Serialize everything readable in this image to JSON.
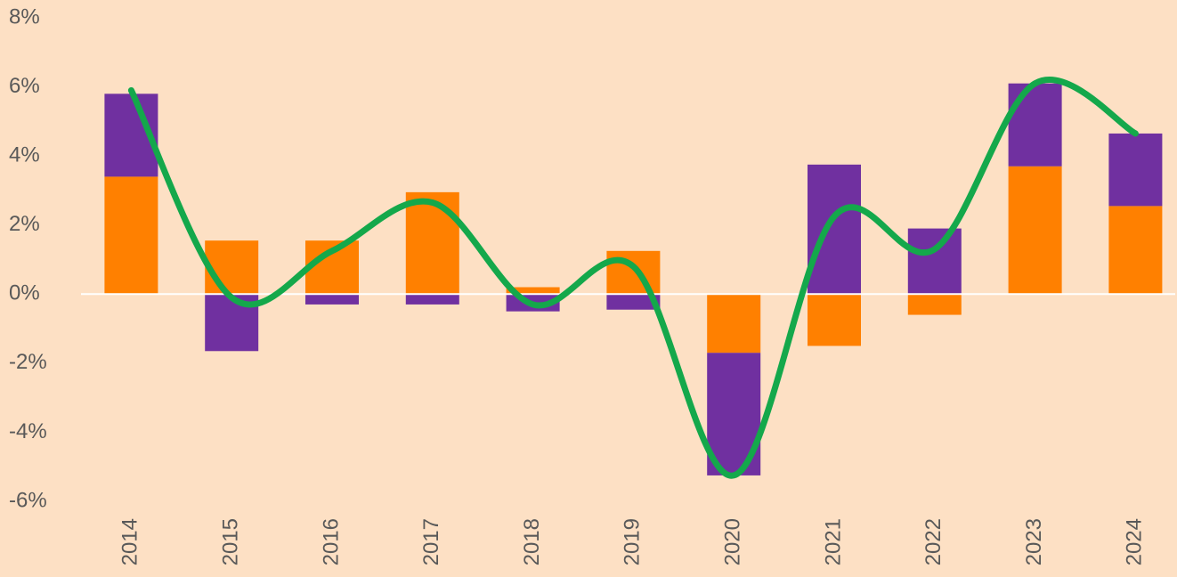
{
  "chart_data": {
    "type": "bar",
    "categories": [
      "2014",
      "2015",
      "2016",
      "2017",
      "2018",
      "2019",
      "2020",
      "2021",
      "2022",
      "2023",
      "2024"
    ],
    "series": [
      {
        "color": "#ff8000",
        "values": [
          3.4,
          1.55,
          1.55,
          2.95,
          0.2,
          1.25,
          -1.7,
          -1.5,
          -0.6,
          3.7,
          2.55
        ]
      },
      {
        "color": "#7030a0",
        "values": [
          2.4,
          -1.65,
          -0.3,
          -0.3,
          -0.5,
          -0.45,
          -3.55,
          3.75,
          1.9,
          2.4,
          2.1
        ]
      }
    ],
    "line": {
      "type": "line",
      "color": "#14a84b",
      "smooth": true,
      "values": [
        5.9,
        -0.1,
        1.25,
        2.65,
        -0.3,
        0.8,
        -5.25,
        2.25,
        1.3,
        6.1,
        4.65
      ]
    },
    "stacked": true,
    "ylim": [
      -6,
      8
    ],
    "yticks": [
      {
        "value": -6,
        "label": "-6%"
      },
      {
        "value": -4,
        "label": "-4%"
      },
      {
        "value": -2,
        "label": "-2%"
      },
      {
        "value": 0,
        "label": "0%"
      },
      {
        "value": 2,
        "label": "2%"
      },
      {
        "value": 4,
        "label": "4%"
      },
      {
        "value": 6,
        "label": "6%"
      },
      {
        "value": 8,
        "label": "8%"
      }
    ],
    "grid": false
  }
}
